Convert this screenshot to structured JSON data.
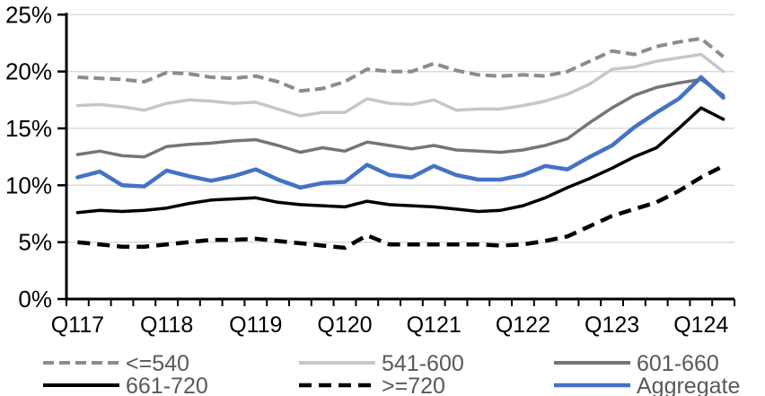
{
  "chart_data": {
    "type": "line",
    "title": "",
    "x_axis": {
      "n_points": 30,
      "tick_labels": [
        "Q117",
        "Q118",
        "Q119",
        "Q120",
        "Q121",
        "Q122",
        "Q123",
        "Q124"
      ],
      "label_every": 4
    },
    "y_axis": {
      "min": 0,
      "max": 25,
      "step": 5,
      "tick_labels": [
        "0%",
        "5%",
        "10%",
        "15%",
        "20%",
        "25%"
      ],
      "format": "percent"
    },
    "grid": true,
    "legend_position": "bottom",
    "series": [
      {
        "name": "<=540",
        "color": "#8C8C8C",
        "dash": "12 6",
        "width": 4,
        "values": [
          19.5,
          19.4,
          19.3,
          19.1,
          19.9,
          19.8,
          19.5,
          19.4,
          19.6,
          19.1,
          18.3,
          18.5,
          19.1,
          20.2,
          20.0,
          20.0,
          20.7,
          20.1,
          19.7,
          19.6,
          19.7,
          19.6,
          20.0,
          20.9,
          21.8,
          21.5,
          22.2,
          22.6,
          22.9,
          21.3
        ]
      },
      {
        "name": "541-600",
        "color": "#C7C7C7",
        "dash": "",
        "width": 3.5,
        "values": [
          17.0,
          17.1,
          16.9,
          16.6,
          17.2,
          17.5,
          17.4,
          17.2,
          17.3,
          16.7,
          16.1,
          16.4,
          16.4,
          17.6,
          17.2,
          17.1,
          17.5,
          16.6,
          16.7,
          16.7,
          17.0,
          17.4,
          18.0,
          18.9,
          20.2,
          20.4,
          20.9,
          21.2,
          21.5,
          20.0
        ]
      },
      {
        "name": "601-660",
        "color": "#757575",
        "dash": "",
        "width": 3.5,
        "values": [
          12.7,
          13.0,
          12.6,
          12.5,
          13.4,
          13.6,
          13.7,
          13.9,
          14.0,
          13.5,
          12.9,
          13.3,
          13.0,
          13.8,
          13.5,
          13.2,
          13.5,
          13.1,
          13.0,
          12.9,
          13.1,
          13.5,
          14.1,
          15.5,
          16.8,
          17.9,
          18.6,
          19.0,
          19.3,
          17.9
        ]
      },
      {
        "name": "661-720",
        "color": "#000000",
        "dash": "",
        "width": 3.5,
        "values": [
          7.6,
          7.8,
          7.7,
          7.8,
          8.0,
          8.4,
          8.7,
          8.8,
          8.9,
          8.5,
          8.3,
          8.2,
          8.1,
          8.6,
          8.3,
          8.2,
          8.1,
          7.9,
          7.7,
          7.8,
          8.2,
          8.9,
          9.8,
          10.6,
          11.5,
          12.5,
          13.3,
          15.0,
          16.8,
          15.8
        ]
      },
      {
        "name": ">=720",
        "color": "#000000",
        "dash": "14 8",
        "width": 4.5,
        "values": [
          5.0,
          4.8,
          4.6,
          4.6,
          4.8,
          5.0,
          5.2,
          5.2,
          5.3,
          5.1,
          4.9,
          4.7,
          4.5,
          5.6,
          4.8,
          4.8,
          4.8,
          4.8,
          4.8,
          4.7,
          4.8,
          5.1,
          5.5,
          6.4,
          7.3,
          7.9,
          8.5,
          9.5,
          10.7,
          11.7
        ]
      },
      {
        "name": "Aggregate",
        "color": "#4472C4",
        "dash": "",
        "width": 4.5,
        "values": [
          10.7,
          11.2,
          10.0,
          9.9,
          11.3,
          10.8,
          10.4,
          10.8,
          11.4,
          10.5,
          9.8,
          10.2,
          10.3,
          11.8,
          10.9,
          10.7,
          11.7,
          10.9,
          10.5,
          10.5,
          10.9,
          11.7,
          11.4,
          12.5,
          13.5,
          15.1,
          16.4,
          17.6,
          19.5,
          17.7
        ]
      }
    ],
    "legend_rows": [
      [
        "<=540",
        "541-600",
        "601-660"
      ],
      [
        "661-720",
        ">=720",
        "Aggregate"
      ]
    ]
  },
  "colors": {
    "background": "#FFFFFF",
    "gridline": "#D9D9D9",
    "axis": "#000000",
    "axis_label": "#000000",
    "legend_text": "#595959"
  }
}
